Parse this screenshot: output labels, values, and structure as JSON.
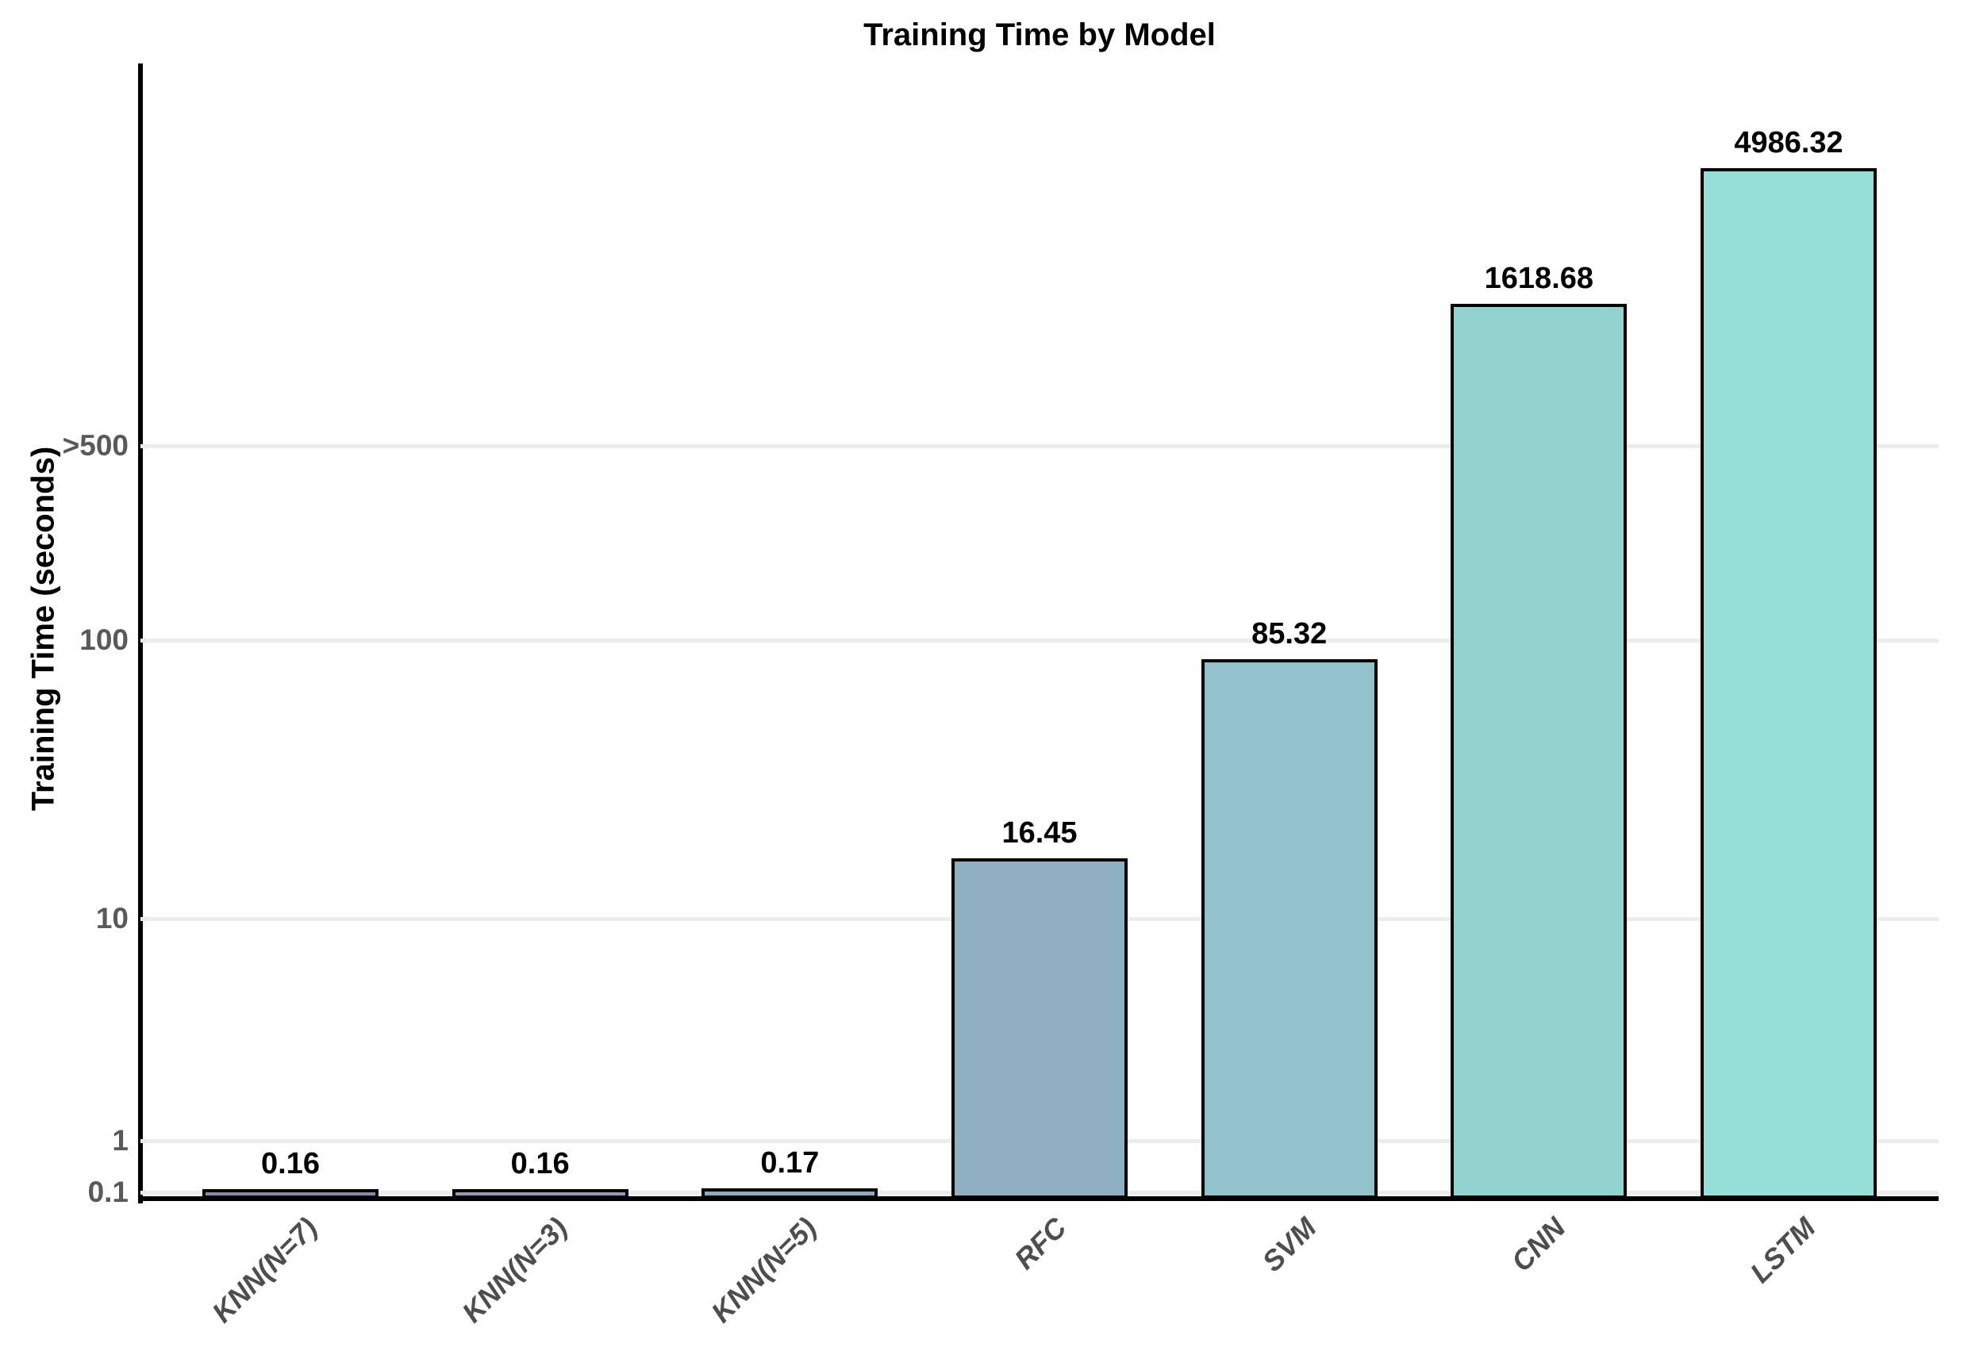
{
  "chart_data": {
    "type": "bar",
    "title": "Training Time by Model",
    "ylabel": "Training Time (seconds)",
    "xlabel": "",
    "categories": [
      "KNN(N=7)",
      "KNN(N=3)",
      "KNN(N=5)",
      "RFC",
      "SVM",
      "CNN",
      "LSTM"
    ],
    "values": [
      0.16,
      0.16,
      0.17,
      16.45,
      85.32,
      1618.68,
      4986.32
    ],
    "value_labels": [
      "0.16",
      "0.16",
      "0.17",
      "16.45",
      "85.32",
      "1618.68",
      "4986.32"
    ],
    "bar_colors": [
      "#9186ad",
      "#9598b7",
      "#93a7bd",
      "#92b0c4",
      "#91c1cb",
      "#93d3cf",
      "#96ded7"
    ],
    "bar_edge_color": "#000000",
    "y_ticks": [
      "0.1",
      "1",
      "10",
      "100",
      ">500"
    ],
    "y_axis_scale": "log-like (compressed below 10)",
    "grid": "horizontal",
    "gridline_color": "#ececec",
    "legend": "none",
    "background_color": "#ffffff",
    "tick_label_color": "#595959",
    "x_tick_label_color": "#4d4d4d"
  }
}
